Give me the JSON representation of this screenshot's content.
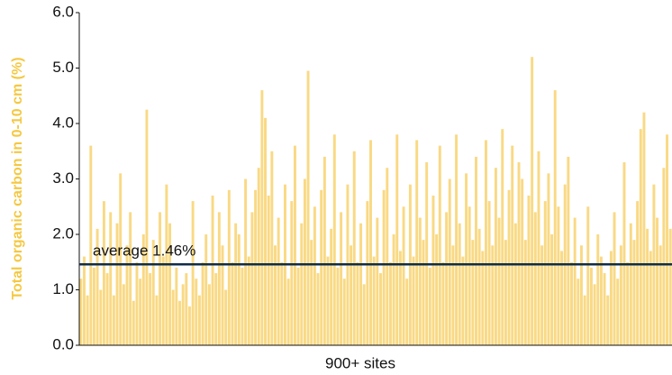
{
  "chart_data": {
    "type": "bar",
    "y_label": "Total organic carbon in 0-10 cm (%)",
    "x_label": "900+ sites",
    "color": "#f9d984",
    "average": {
      "value": 1.46,
      "label": "average 1.46%",
      "color": "#0f2d4a"
    },
    "ylim": [
      0,
      6
    ],
    "yticks": [
      {
        "value": 0,
        "label": "0.0"
      },
      {
        "value": 1,
        "label": "1.0"
      },
      {
        "value": 2,
        "label": "2.0"
      },
      {
        "value": 3,
        "label": "3.0"
      },
      {
        "value": 4,
        "label": "4.0"
      },
      {
        "value": 5,
        "label": "5.0"
      },
      {
        "value": 6,
        "label": "6.0"
      }
    ],
    "values": [
      1.2,
      1.6,
      0.9,
      3.6,
      1.4,
      2.1,
      1.0,
      2.6,
      1.3,
      2.4,
      0.9,
      2.2,
      3.1,
      1.1,
      1.8,
      2.4,
      0.8,
      1.5,
      1.2,
      2.0,
      4.25,
      1.3,
      1.9,
      0.9,
      2.4,
      1.6,
      2.9,
      2.2,
      1.0,
      1.4,
      0.8,
      1.1,
      1.3,
      0.7,
      2.6,
      1.2,
      0.9,
      1.5,
      2.0,
      1.1,
      2.7,
      1.3,
      2.4,
      1.8,
      1.0,
      2.8,
      1.5,
      2.2,
      2.0,
      1.4,
      3.0,
      1.6,
      2.4,
      2.8,
      3.2,
      4.6,
      4.1,
      2.7,
      3.5,
      1.8,
      2.3,
      1.5,
      2.9,
      1.2,
      2.6,
      3.6,
      1.4,
      2.2,
      3.0,
      4.95,
      1.9,
      2.5,
      1.3,
      2.8,
      3.4,
      1.6,
      2.1,
      3.8,
      1.4,
      2.4,
      1.2,
      2.9,
      1.8,
      3.5,
      1.5,
      2.2,
      1.1,
      2.6,
      3.7,
      1.6,
      2.3,
      1.3,
      2.8,
      3.2,
      1.5,
      2.0,
      3.8,
      1.7,
      2.5,
      1.2,
      2.9,
      1.6,
      3.7,
      2.3,
      1.9,
      3.3,
      1.4,
      2.7,
      2.0,
      3.6,
      1.5,
      2.4,
      3.0,
      1.8,
      3.8,
      2.2,
      1.6,
      3.1,
      2.5,
      1.9,
      3.4,
      2.1,
      1.7,
      3.7,
      2.6,
      1.8,
      3.2,
      2.3,
      3.9,
      1.9,
      2.8,
      3.6,
      2.2,
      3.3,
      3.0,
      1.9,
      2.7,
      5.2,
      2.4,
      3.5,
      1.8,
      2.6,
      3.1,
      2.0,
      4.6,
      2.5,
      1.7,
      2.9,
      3.4,
      1.5,
      2.3,
      1.2,
      1.8,
      0.9,
      2.5,
      1.4,
      1.1,
      2.0,
      1.6,
      1.3,
      0.9,
      1.7,
      2.4,
      1.2,
      1.8,
      3.3,
      1.5,
      2.2,
      1.9,
      2.6,
      3.9,
      4.2,
      2.1,
      1.7,
      2.9,
      2.3,
      1.8,
      3.2,
      3.8,
      2.1
    ]
  }
}
